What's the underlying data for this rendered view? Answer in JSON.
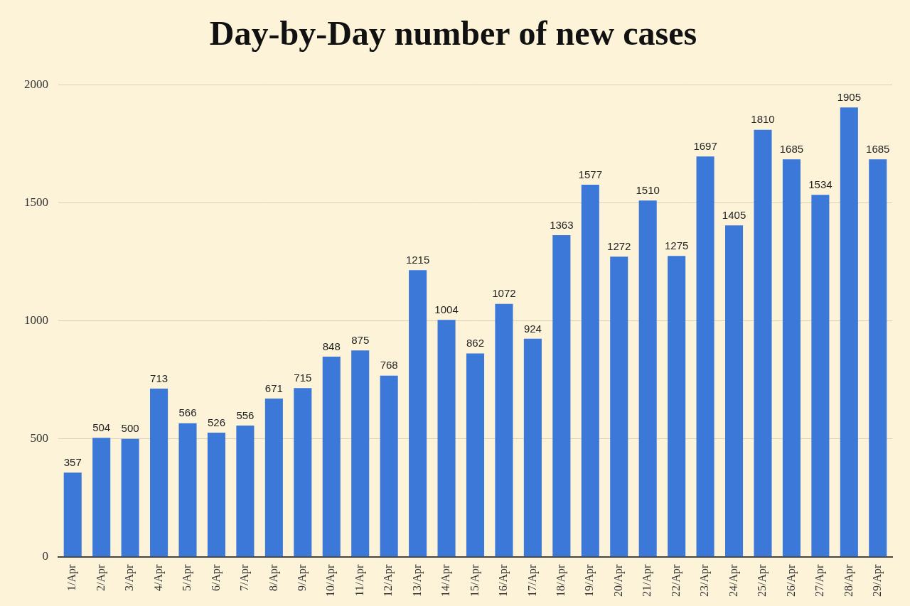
{
  "chart_data": {
    "type": "bar",
    "title": "Day-by-Day number of new cases",
    "categories": [
      "1/Apr",
      "2/Apr",
      "3/Apr",
      "4/Apr",
      "5/Apr",
      "6/Apr",
      "7/Apr",
      "8/Apr",
      "9/Apr",
      "10/Apr",
      "11/Apr",
      "12/Apr",
      "13/Apr",
      "14/Apr",
      "15/Apr",
      "16/Apr",
      "17/Apr",
      "18/Apr",
      "19/Apr",
      "20/Apr",
      "21/Apr",
      "22/Apr",
      "23/Apr",
      "24/Apr",
      "25/Apr",
      "26/Apr",
      "27/Apr",
      "28/Apr",
      "29/Apr"
    ],
    "values": [
      357,
      504,
      500,
      713,
      566,
      526,
      556,
      671,
      715,
      848,
      875,
      768,
      1215,
      1004,
      862,
      1072,
      924,
      1363,
      1577,
      1272,
      1510,
      1275,
      1697,
      1405,
      1810,
      1685,
      1534,
      1905,
      1685
    ],
    "color": "#3c78d8",
    "ylim": [
      0,
      2000
    ],
    "yticks": [
      0,
      500,
      1000,
      1500,
      2000
    ],
    "grid": true,
    "data_labels": true
  }
}
